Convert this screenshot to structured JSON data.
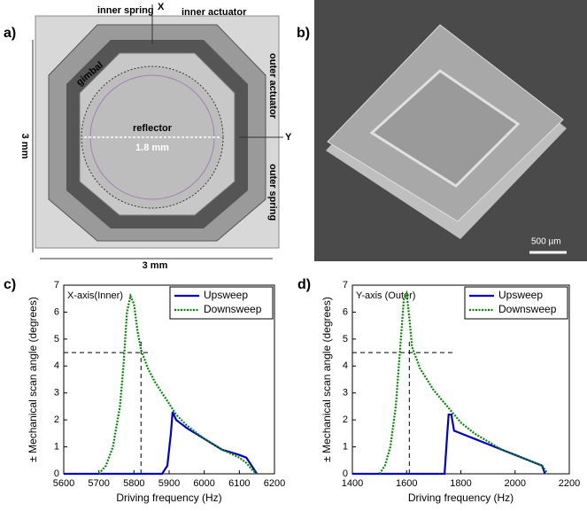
{
  "panel_a": {
    "label": "a)",
    "inner_spring": "inner spring",
    "inner_actuator": "inner actuator",
    "x_axis": "X",
    "gimbal": "gimbal",
    "outer_actuator": "outer actuator",
    "reflector": "reflector",
    "reflector_size": "1.8 mm",
    "y_axis": "Y",
    "outer_spring": "outer spring",
    "height": "3 mm",
    "width": "3 mm"
  },
  "panel_b": {
    "label": "b)",
    "scale_bar": "500 µm"
  },
  "chart_data": [
    {
      "type": "line",
      "panel_label": "c)",
      "title": "X-axis(Inner)",
      "x_label": "Driving frequency (Hz)",
      "y_label": "± Mechanical scan angle (degrees)",
      "xlim": [
        5600,
        6200
      ],
      "xticks": [
        5600,
        5700,
        5800,
        5900,
        6000,
        6100,
        6200
      ],
      "ylim": [
        0,
        7
      ],
      "yticks": [
        0,
        1,
        2,
        3,
        4,
        5,
        6,
        7
      ],
      "hline": {
        "y": 4.5,
        "x_end": 5850
      },
      "vline": {
        "x": 5820,
        "y_end": 5
      },
      "series": [
        {
          "name": "Upsweep",
          "color": "#0000cc",
          "dash": false,
          "x": [
            5600,
            5880,
            5895,
            5905,
            5910,
            5920,
            5930,
            5950,
            6000,
            6050,
            6100,
            6120,
            6140,
            6150
          ],
          "values": [
            0,
            0,
            0.3,
            1.5,
            2.3,
            2.0,
            1.9,
            1.7,
            1.3,
            0.9,
            0.7,
            0.6,
            0.2,
            0
          ]
        },
        {
          "name": "Downsweep",
          "color": "#008800",
          "dash": true,
          "x": [
            5700,
            5720,
            5740,
            5760,
            5770,
            5780,
            5790,
            5800,
            5810,
            5820,
            5840,
            5860,
            5880,
            5900,
            5920,
            5950,
            6000,
            6050,
            6100,
            6120,
            6140,
            6150
          ],
          "values": [
            0,
            0.3,
            1.0,
            2.5,
            4.0,
            6.0,
            6.6,
            6.3,
            5.3,
            4.6,
            3.9,
            3.4,
            3.0,
            2.6,
            2.2,
            1.8,
            1.3,
            0.9,
            0.6,
            0.4,
            0.1,
            0
          ]
        }
      ]
    },
    {
      "type": "line",
      "panel_label": "d)",
      "title": "Y-axis  (Outer)",
      "x_label": "Driving frequency (Hz)",
      "y_label": "± Mechanical scan angle (degrees)",
      "xlim": [
        1400,
        2200
      ],
      "xticks": [
        1400,
        1600,
        1800,
        2000,
        2200
      ],
      "ylim": [
        0,
        7
      ],
      "yticks": [
        0,
        1,
        2,
        3,
        4,
        5,
        6,
        7
      ],
      "hline": {
        "y": 4.5,
        "x_end": 1770
      },
      "vline": {
        "x": 1610,
        "y_end": 5
      },
      "series": [
        {
          "name": "Upsweep",
          "color": "#0000cc",
          "dash": false,
          "x": [
            1400,
            1740,
            1750,
            1755,
            1765,
            1775,
            1800,
            1850,
            1900,
            1950,
            2000,
            2050,
            2100,
            2110
          ],
          "values": [
            0,
            0,
            1.5,
            2.2,
            2.2,
            1.6,
            1.5,
            1.3,
            1.1,
            0.9,
            0.7,
            0.5,
            0.3,
            0
          ]
        },
        {
          "name": "Downsweep",
          "color": "#008800",
          "dash": true,
          "x": [
            1500,
            1520,
            1540,
            1560,
            1575,
            1590,
            1600,
            1610,
            1620,
            1650,
            1700,
            1750,
            1800,
            1850,
            1900,
            1950,
            2000,
            2050,
            2100,
            2120
          ],
          "values": [
            0,
            0.3,
            1.0,
            2.5,
            4.5,
            6.5,
            6.7,
            5.8,
            4.7,
            3.9,
            3.1,
            2.5,
            1.9,
            1.5,
            1.2,
            0.9,
            0.7,
            0.5,
            0.3,
            0
          ]
        }
      ]
    }
  ]
}
